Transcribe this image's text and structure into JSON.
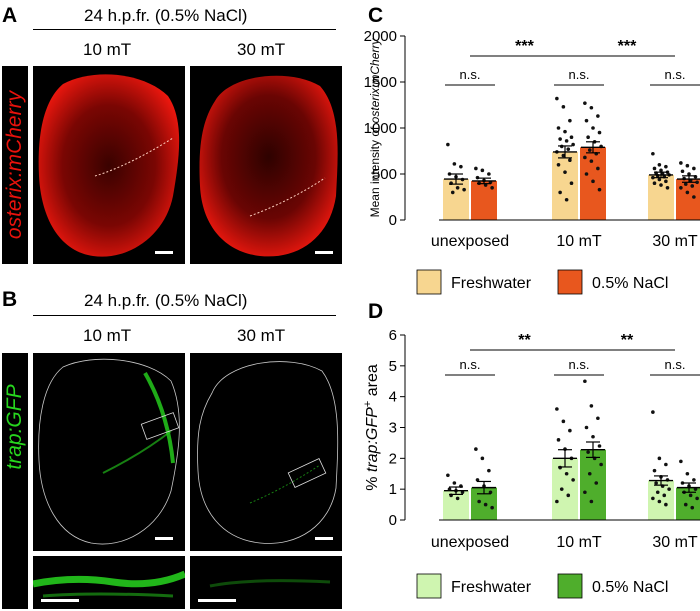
{
  "panel_a": {
    "letter": "A",
    "header": "24 h.p.fr. (0.5% NaCl)",
    "cond_left": "10 mT",
    "cond_right": "30 mT",
    "side_label": "osterix:mCherry",
    "color": "#e8120c"
  },
  "panel_b": {
    "letter": "B",
    "header": "24 h.p.fr. (0.5% NaCl)",
    "cond_left": "10 mT",
    "cond_right": "30 mT",
    "side_label": "trap:GFP",
    "color": "#27d61e"
  },
  "chart_data": [
    {
      "panel": "C",
      "type": "bar",
      "ylabel_pre": "Mean intensity of ",
      "ylabel_ital": "osterix:mCherry",
      "ylabel_post": "",
      "ylim": [
        0,
        2000
      ],
      "yticks": [
        "0",
        "500",
        "1000",
        "1500",
        "2000"
      ],
      "categories": [
        "unexposed",
        "10 mT",
        "30 mT"
      ],
      "series": [
        {
          "name": "Freshwater",
          "color": "#f7d690",
          "values": [
            445,
            740,
            490
          ],
          "sem": [
            55,
            65,
            30
          ],
          "points": [
            [
              820,
              610,
              580,
              500,
              470,
              440,
              400,
              350,
              330,
              300
            ],
            [
              1320,
              1230,
              1080,
              1000,
              960,
              900,
              880,
              860,
              820,
              800,
              770,
              740,
              700,
              650,
              600,
              520,
              400,
              300,
              220
            ],
            [
              720,
              600,
              580,
              560,
              540,
              520,
              510,
              500,
              490,
              480,
              470,
              460,
              440,
              420,
              400,
              380,
              350
            ]
          ]
        },
        {
          "name": "0.5% NaCl",
          "color": "#e8571e",
          "values": [
            425,
            790,
            445
          ],
          "sem": [
            30,
            60,
            35
          ],
          "points": [
            [
              560,
              540,
              500,
              460,
              430,
              410,
              400,
              380,
              350
            ],
            [
              1270,
              1220,
              1130,
              1080,
              1000,
              950,
              900,
              850,
              800,
              760,
              720,
              680,
              640,
              560,
              500,
              420,
              330
            ],
            [
              620,
              590,
              560,
              530,
              500,
              470,
              450,
              430,
              410,
              390,
              370,
              350,
              300,
              250
            ]
          ]
        }
      ],
      "comparisons": [
        {
          "label": "n.s.",
          "kind": "within",
          "group": 0
        },
        {
          "label": "n.s.",
          "kind": "within",
          "group": 1
        },
        {
          "label": "n.s.",
          "kind": "within",
          "group": 2
        },
        {
          "label": "***",
          "kind": "between",
          "from": 0,
          "to": 1
        },
        {
          "label": "***",
          "kind": "between",
          "from": 1,
          "to": 2
        }
      ]
    },
    {
      "panel": "D",
      "type": "bar",
      "ylabel_pre": "% ",
      "ylabel_ital": "trap:GFP",
      "ylabel_sup": "+",
      "ylabel_post": " area",
      "ylim": [
        0,
        6
      ],
      "yticks": [
        "0",
        "1",
        "2",
        "3",
        "4",
        "5",
        "6"
      ],
      "categories": [
        "unexposed",
        "10 mT",
        "30 mT"
      ],
      "series": [
        {
          "name": "Freshwater",
          "color": "#cff5b0",
          "values": [
            0.95,
            2.0,
            1.28
          ],
          "sem": [
            0.12,
            0.28,
            0.15
          ],
          "points": [
            [
              1.45,
              1.2,
              1.1,
              1.0,
              0.95,
              0.9,
              0.8,
              0.7
            ],
            [
              3.6,
              3.2,
              2.9,
              2.6,
              2.3,
              2.0,
              1.7,
              1.5,
              1.3,
              1.0,
              0.8,
              0.6
            ],
            [
              3.5,
              2.0,
              1.8,
              1.6,
              1.4,
              1.3,
              1.2,
              1.1,
              1.0,
              0.9,
              0.8,
              0.7,
              0.6,
              0.5
            ]
          ]
        },
        {
          "name": "0.5% NaCl",
          "color": "#4fae2c",
          "values": [
            1.05,
            2.28,
            1.05
          ],
          "sem": [
            0.2,
            0.25,
            0.15
          ],
          "points": [
            [
              2.3,
              2.0,
              1.6,
              1.3,
              1.1,
              0.9,
              0.6,
              0.5,
              0.4
            ],
            [
              4.5,
              3.7,
              3.3,
              3.0,
              2.7,
              2.4,
              2.2,
              2.0,
              1.8,
              1.5,
              1.2,
              0.9,
              0.6
            ],
            [
              1.9,
              1.5,
              1.3,
              1.2,
              1.1,
              1.0,
              0.9,
              0.8,
              0.7,
              0.5,
              0.4
            ]
          ]
        }
      ],
      "comparisons": [
        {
          "label": "n.s.",
          "kind": "within",
          "group": 0
        },
        {
          "label": "n.s.",
          "kind": "within",
          "group": 1
        },
        {
          "label": "n.s.",
          "kind": "within",
          "group": 2
        },
        {
          "label": "**",
          "kind": "between",
          "from": 0,
          "to": 1
        },
        {
          "label": "**",
          "kind": "between",
          "from": 1,
          "to": 2
        }
      ]
    }
  ]
}
